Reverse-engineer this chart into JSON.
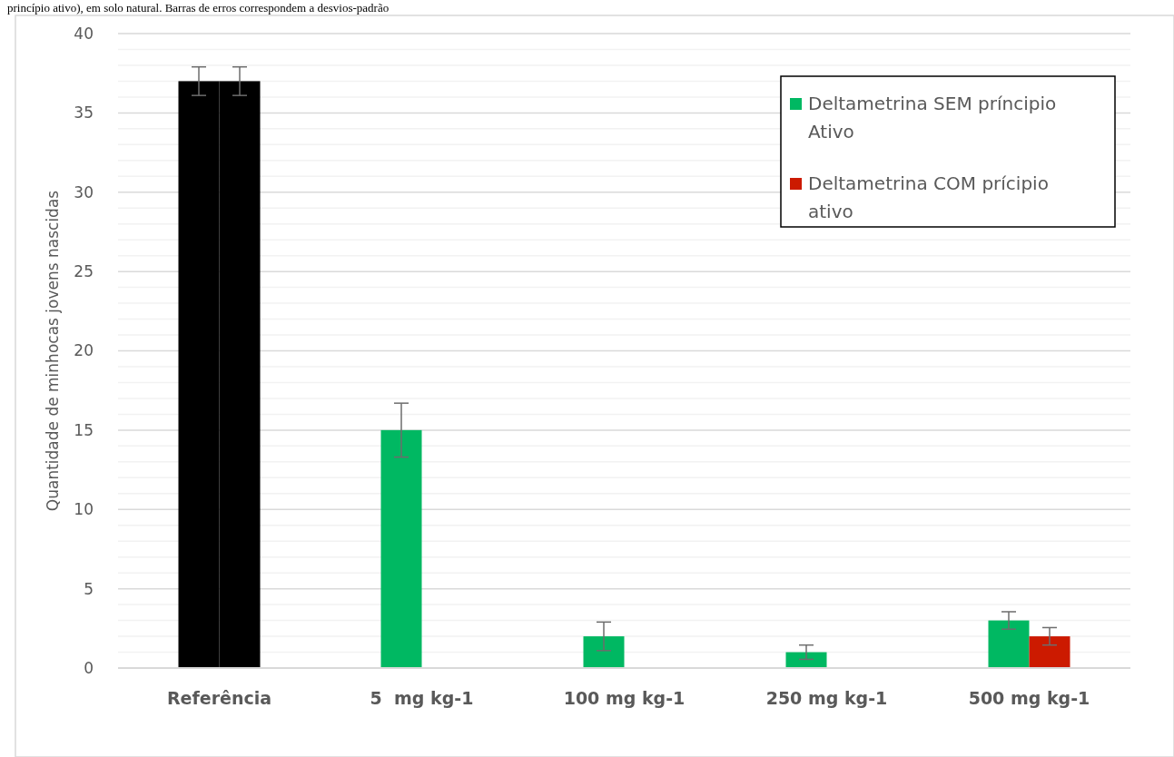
{
  "chart_data": {
    "type": "bar",
    "annotations": [
      "princípio ativo), em solo natural. Barras de erros correspondem a desvios-padrão"
    ],
    "ylabel": "Quantidade de minhocas jovens nascidas",
    "categories": [
      "Referência",
      "5  mg kg-1",
      "100 mg kg-1",
      "250 mg kg-1",
      "500 mg kg-1"
    ],
    "series": [
      {
        "name": "Deltametrina SEM príncipio Ativo",
        "color": "#00b862",
        "colors": [
          "#000000",
          "#00b862",
          "#00b862",
          "#00b862",
          "#00b862"
        ],
        "values": [
          37,
          15,
          2,
          1,
          3
        ],
        "errors": [
          0.9,
          1.7,
          0.9,
          0.45,
          0.55
        ]
      },
      {
        "name": "Deltametrina COM prícipio ativo",
        "color": "#cc1a00",
        "colors": [
          "#000000",
          "#cc1a00",
          "#cc1a00",
          "#cc1a00",
          "#cc1a00"
        ],
        "values": [
          37,
          0,
          0,
          0,
          2
        ],
        "errors": [
          0.9,
          0,
          0,
          0,
          0.55
        ]
      }
    ],
    "ylim": [
      0,
      40
    ],
    "yticks": [
      0,
      {
        "value": 1,
        "label": null
      },
      {
        "value": 2,
        "label": null
      },
      {
        "value": 3,
        "label": null
      },
      {
        "value": 4,
        "label": null
      },
      5,
      {
        "value": 6,
        "label": null
      },
      {
        "value": 7,
        "label": null
      },
      {
        "value": 8,
        "label": null
      },
      {
        "value": 9,
        "label": null
      },
      10,
      {
        "value": 11,
        "label": null
      },
      {
        "value": 12,
        "label": null
      },
      {
        "value": 13,
        "label": null
      },
      {
        "value": 14,
        "label": null
      },
      15,
      {
        "value": 16,
        "label": null
      },
      {
        "value": 17,
        "label": null
      },
      {
        "value": 18,
        "label": null
      },
      {
        "value": 19,
        "label": null
      },
      20,
      {
        "value": 21,
        "label": null
      },
      {
        "value": 22,
        "label": null
      },
      {
        "value": 23,
        "label": null
      },
      {
        "value": 24,
        "label": null
      },
      25,
      {
        "value": 26,
        "label": null
      },
      {
        "value": 27,
        "label": null
      },
      {
        "value": 28,
        "label": null
      },
      {
        "value": 29,
        "label": null
      },
      30,
      {
        "value": 31,
        "label": null
      },
      {
        "value": 32,
        "label": null
      },
      {
        "value": 33,
        "label": null
      },
      {
        "value": 34,
        "label": null
      },
      35,
      {
        "value": 36,
        "label": null
      },
      {
        "value": 37,
        "label": null
      },
      {
        "value": 38,
        "label": null
      },
      {
        "value": 39,
        "label": null
      },
      40
    ],
    "grid": "y",
    "legend": "top right"
  }
}
